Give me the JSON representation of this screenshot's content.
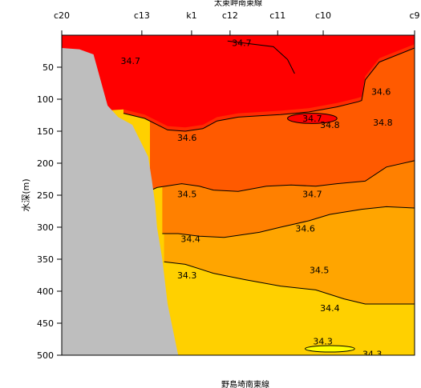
{
  "chart_data": {
    "type": "contour",
    "title": "太東岬南東線",
    "bottom_label": "野島埼南東線",
    "ylabel": "水深(m)",
    "ylim": [
      0,
      500
    ],
    "y_inverted": true,
    "yticks": [
      50,
      100,
      150,
      200,
      250,
      300,
      350,
      400,
      450,
      500
    ],
    "stations": [
      "c20",
      "c13",
      "k1",
      "c12",
      "c11",
      "c10",
      "c9"
    ],
    "station_positions": [
      0.0,
      0.227,
      0.368,
      0.477,
      0.612,
      0.741,
      1.0
    ],
    "x_range": [
      0,
      1
    ],
    "contour_levels": [
      34.3,
      34.4,
      34.5,
      34.6,
      34.7
    ],
    "fill_colors": {
      "ge_34.7": "#ff0000",
      "34.6_34.7": "#ff2a00",
      "34.5_34.6": "#ff5a00",
      "34.4_34.5": "#ff8000",
      "34.3_34.4": "#ffa500",
      "lt_34.3": "#ffd000",
      "seabed": "#bebebe"
    },
    "isolines": [
      {
        "level": 34.7,
        "points": [
          [
            0.47,
            9
          ],
          [
            0.6,
            18
          ],
          [
            0.64,
            38
          ],
          [
            0.66,
            60
          ]
        ]
      },
      {
        "level": 34.6,
        "points": [
          [
            0.175,
            122
          ],
          [
            0.235,
            130
          ],
          [
            0.3,
            148
          ],
          [
            0.35,
            150
          ],
          [
            0.4,
            146
          ],
          [
            0.44,
            134
          ],
          [
            0.5,
            128
          ],
          [
            0.56,
            126
          ],
          [
            0.62,
            124
          ],
          [
            0.7,
            120
          ],
          [
            0.78,
            112
          ],
          [
            0.84,
            104
          ],
          [
            0.85,
            102
          ],
          [
            0.86,
            70
          ],
          [
            0.9,
            42
          ],
          [
            1.0,
            20
          ]
        ]
      },
      {
        "level": 34.5,
        "points": [
          [
            0.25,
            243
          ],
          [
            0.27,
            238
          ],
          [
            0.34,
            232
          ],
          [
            0.39,
            236
          ],
          [
            0.43,
            242
          ],
          [
            0.5,
            244
          ],
          [
            0.58,
            236
          ],
          [
            0.65,
            234
          ],
          [
            0.72,
            236
          ],
          [
            0.78,
            232
          ],
          [
            0.86,
            228
          ],
          [
            0.92,
            206
          ],
          [
            1.0,
            196
          ]
        ]
      },
      {
        "level": 34.4,
        "points": [
          [
            0.285,
            310
          ],
          [
            0.33,
            310
          ],
          [
            0.39,
            314
          ],
          [
            0.46,
            316
          ],
          [
            0.56,
            308
          ],
          [
            0.62,
            300
          ],
          [
            0.7,
            290
          ],
          [
            0.76,
            280
          ],
          [
            0.85,
            272
          ],
          [
            0.92,
            268
          ],
          [
            1.0,
            270
          ]
        ]
      },
      {
        "level": 34.3,
        "points": [
          [
            0.29,
            354
          ],
          [
            0.35,
            358
          ],
          [
            0.43,
            372
          ],
          [
            0.52,
            382
          ],
          [
            0.62,
            392
          ],
          [
            0.72,
            398
          ],
          [
            0.8,
            412
          ],
          [
            0.86,
            420
          ],
          [
            1.0,
            420
          ]
        ]
      }
    ],
    "closed_contours": [
      {
        "level": 34.7,
        "cx": 0.71,
        "cy": 130,
        "rx": 0.07,
        "ry": 8
      },
      {
        "level": 34.3,
        "cx": 0.76,
        "cy": 490,
        "rx": 0.07,
        "ry": 5
      }
    ],
    "seabed": [
      [
        0,
        20
      ],
      [
        0.05,
        22
      ],
      [
        0.09,
        30
      ],
      [
        0.1,
        50
      ],
      [
        0.11,
        70
      ],
      [
        0.13,
        110
      ],
      [
        0.16,
        128
      ],
      [
        0.2,
        140
      ],
      [
        0.245,
        190
      ],
      [
        0.255,
        225
      ],
      [
        0.265,
        265
      ],
      [
        0.27,
        300
      ],
      [
        0.285,
        350
      ],
      [
        0.3,
        420
      ],
      [
        0.33,
        500
      ]
    ],
    "contour_text_labels": [
      {
        "text": "34.7",
        "x": 0.51,
        "y": 12
      },
      {
        "text": "34.7",
        "x": 0.195,
        "y": 40
      },
      {
        "text": "34.6",
        "x": 0.905,
        "y": 88
      },
      {
        "text": "34.7",
        "x": 0.71,
        "y": 130
      },
      {
        "text": "34.8",
        "x": 0.76,
        "y": 140
      },
      {
        "text": "34.8",
        "x": 0.91,
        "y": 136
      },
      {
        "text": "34.6",
        "x": 0.355,
        "y": 160
      },
      {
        "text": "34.5",
        "x": 0.355,
        "y": 248
      },
      {
        "text": "34.7",
        "x": 0.71,
        "y": 248
      },
      {
        "text": "34.6",
        "x": 0.69,
        "y": 302
      },
      {
        "text": "34.4",
        "x": 0.365,
        "y": 318
      },
      {
        "text": "34.5",
        "x": 0.73,
        "y": 367
      },
      {
        "text": "34.3",
        "x": 0.355,
        "y": 375
      },
      {
        "text": "34.4",
        "x": 0.76,
        "y": 426
      },
      {
        "text": "34.3",
        "x": 0.74,
        "y": 478
      },
      {
        "text": "34.3",
        "x": 0.88,
        "y": 498
      }
    ]
  }
}
